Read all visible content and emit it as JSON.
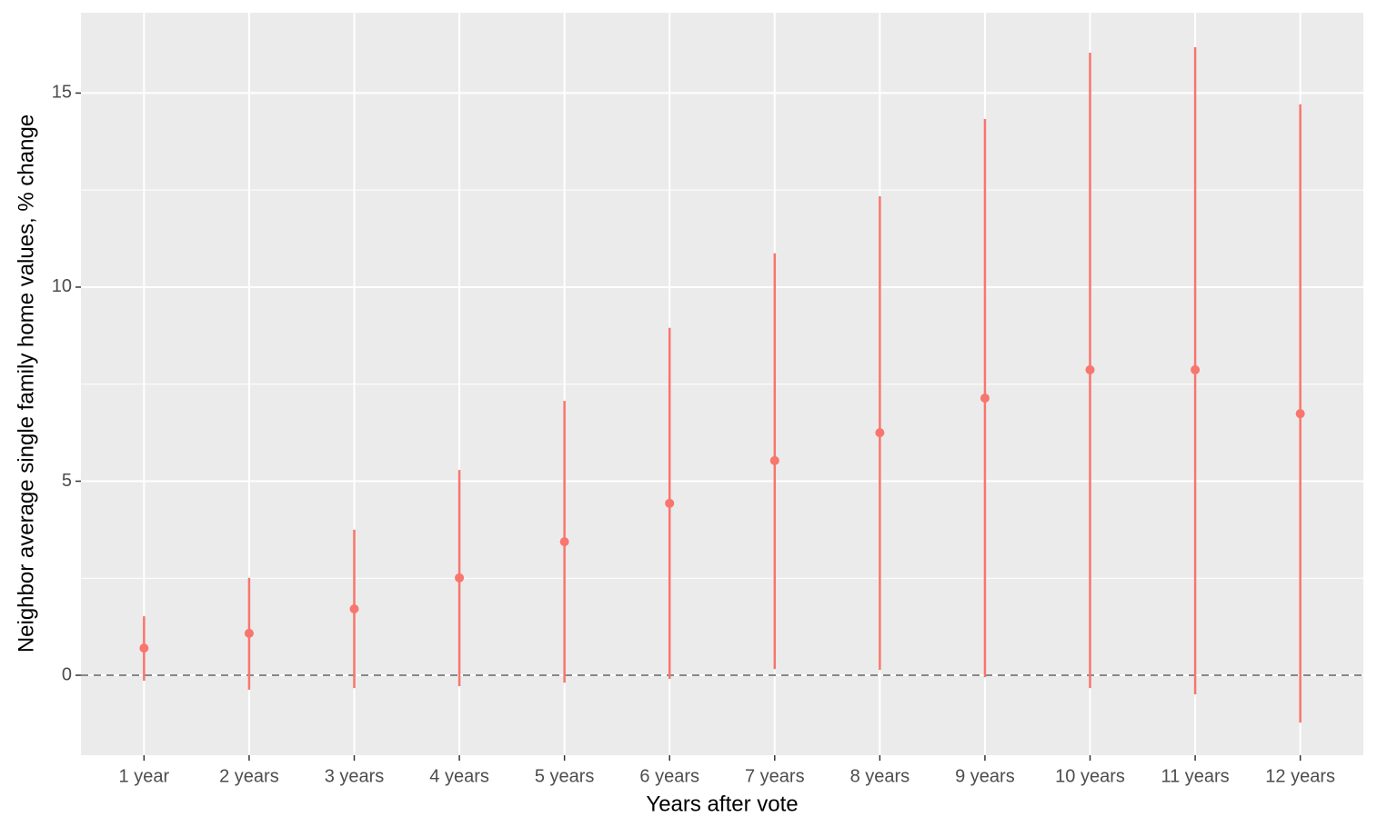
{
  "chart_data": {
    "type": "pointrange",
    "x_label": "Years after vote",
    "y_label": "Neighbor average single family home values, % change",
    "categories": [
      "1 year",
      "2 years",
      "3 years",
      "4 years",
      "5 years",
      "6 years",
      "7 years",
      "8 years",
      "9 years",
      "10 years",
      "11 years",
      "12 years"
    ],
    "series": [
      {
        "color": "#f8766d",
        "values": [
          0.7,
          1.08,
          1.71,
          2.51,
          3.44,
          4.43,
          5.53,
          6.25,
          7.14,
          7.87,
          7.87,
          6.74
        ],
        "lower": [
          -0.14,
          -0.37,
          -0.33,
          -0.28,
          -0.19,
          -0.09,
          0.16,
          0.14,
          -0.05,
          -0.33,
          -0.49,
          -1.22
        ],
        "upper": [
          1.52,
          2.51,
          3.75,
          5.29,
          7.07,
          8.95,
          10.87,
          12.34,
          14.33,
          16.04,
          16.18,
          14.71
        ]
      }
    ],
    "ylim": [
      -2.06,
      17.07
    ],
    "yticks": [
      0,
      5,
      10,
      15
    ],
    "y_minor_ticks": [
      2.5,
      7.5,
      12.5
    ],
    "reference_line": 0,
    "grid": true
  }
}
